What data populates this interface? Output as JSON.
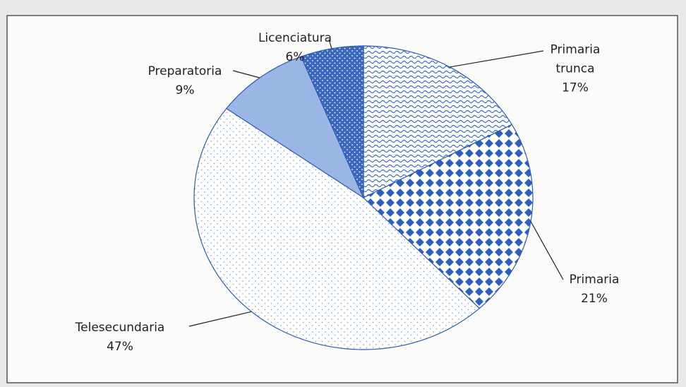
{
  "chart_data": {
    "type": "pie",
    "categories": [
      "Primaria trunca",
      "Primaria",
      "Telesecundaria",
      "Preparatoria",
      "Licenciatura"
    ],
    "values": [
      17,
      21,
      47,
      9,
      6
    ],
    "value_labels": [
      "17%",
      "21%",
      "47%",
      "9%",
      "6%"
    ],
    "colors": [
      "#3f6fc4",
      "#2e5fbf",
      "#8aa8dc",
      "#9bb6e4",
      "#3b68bf"
    ]
  }
}
